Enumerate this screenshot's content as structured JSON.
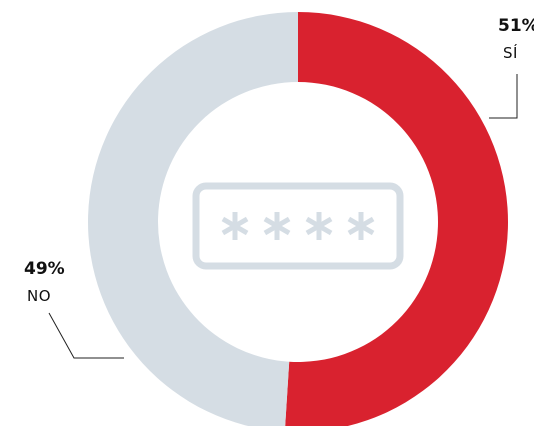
{
  "chart_data": {
    "type": "pie",
    "variant": "donut",
    "slices": [
      {
        "label": "SÍ",
        "value": 51,
        "value_label": "51%",
        "color": "#d9222f"
      },
      {
        "label": "NO",
        "value": 49,
        "value_label": "49%",
        "color": "#d5dde4"
      }
    ],
    "center_icon": "password-field-icon",
    "center_icon_text": "****",
    "grid": false,
    "legend": "none"
  }
}
